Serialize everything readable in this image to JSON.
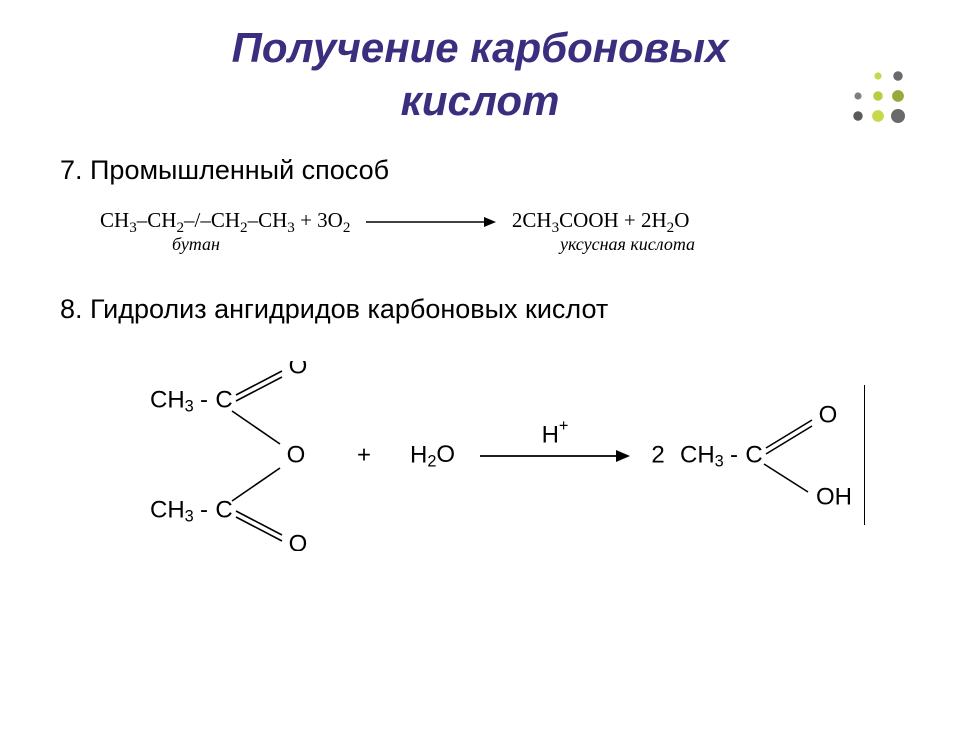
{
  "title_line1": "Получение карбоновых",
  "title_line2": "кислот",
  "title_color": "#3b2e7e",
  "title_fontsize": 42,
  "decor": {
    "colors": [
      "#c7d94a",
      "#6a6a6a",
      "#7f7f7f",
      "#b8cc3f",
      "#9aa83a",
      "#5a5a5a"
    ],
    "grid": 3,
    "spacing": 20,
    "max_r": 7
  },
  "body_color": "#000000",
  "body_fontsize": 27,
  "section7": "7. Промышленный способ",
  "eq1": {
    "fontsize": 21,
    "lhs_part1": "CH",
    "lhs_part2": "–CH",
    "lhs_part3": "–/–CH",
    "lhs_part4": "–CH",
    "plus_o2": " + 3O",
    "rhs1": "2CH",
    "rhs2": "COOH  +  2H",
    "rhs3": "O",
    "label_left": "бутан",
    "label_right": "уксусная кислота",
    "label_fontsize": 18,
    "arrow_width": 130
  },
  "section8": "8. Гидролиз ангидридов карбоновых кислот",
  "eq2": {
    "fontsize": 24,
    "ch3": "CH",
    "c_label": "C",
    "o_label": "O",
    "plus": "+",
    "h2o": "H",
    "h2o_2": "O",
    "hplus": "H",
    "two": "2",
    "oh": "OH",
    "arrow_width": 150,
    "vline_height": 140
  }
}
